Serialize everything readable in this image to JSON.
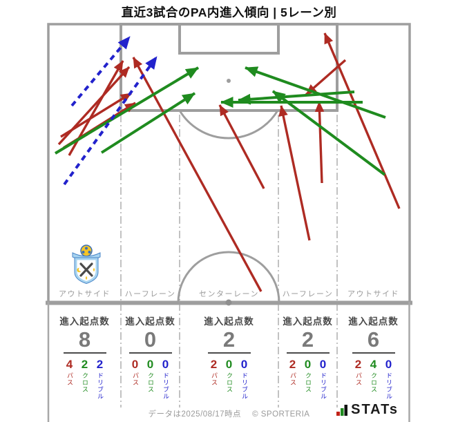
{
  "title": "直近3試合のPA内進入傾向 | 5レーン別",
  "colors": {
    "pass": "#AE2B23",
    "cross": "#1F8B1F",
    "dribble": "#2222CC",
    "pitch_line": "#9E9E9E",
    "divider": "#AEAEAE",
    "lane_label": "#9A9A9A",
    "metric_label": "#4A4A4A",
    "count": "#7A7A7A",
    "footer": "#9A9A9A"
  },
  "stats": {
    "metric_label": "進入起点数",
    "type_labels": {
      "pass": "パス",
      "cross": "クロス",
      "dribble": "ドリブル"
    },
    "lanes": [
      {
        "label": "アウトサイド",
        "entry_count": 8,
        "pass": 4,
        "cross": 2,
        "dribble": 2
      },
      {
        "label": "ハーフレーン",
        "entry_count": 0,
        "pass": 0,
        "cross": 0,
        "dribble": 0
      },
      {
        "label": "センターレーン",
        "entry_count": 2,
        "pass": 2,
        "cross": 0,
        "dribble": 0
      },
      {
        "label": "ハーフレーン",
        "entry_count": 2,
        "pass": 2,
        "cross": 0,
        "dribble": 0
      },
      {
        "label": "アウトサイド",
        "entry_count": 6,
        "pass": 2,
        "cross": 4,
        "dribble": 0
      }
    ]
  },
  "footer": {
    "date_note": "データは2025/08/17時点",
    "copyright": "© SPORTERIA",
    "brand": "STATs"
  },
  "chart_data": {
    "type": "table",
    "title": "直近3試合のPA内進入傾向 | 5レーン別",
    "categories": [
      "アウトサイド",
      "ハーフレーン",
      "センターレーン",
      "ハーフレーン",
      "アウトサイド"
    ],
    "series": [
      {
        "name": "進入起点数",
        "values": [
          8,
          0,
          2,
          2,
          6
        ]
      },
      {
        "name": "パス",
        "values": [
          4,
          0,
          2,
          2,
          2
        ]
      },
      {
        "name": "クロス",
        "values": [
          2,
          0,
          0,
          0,
          4
        ]
      },
      {
        "name": "ドリブル",
        "values": [
          2,
          0,
          0,
          0,
          0
        ]
      }
    ],
    "arrows": [
      {
        "type": "pass",
        "from": [
          100,
          225
        ],
        "to": [
          178,
          88
        ]
      },
      {
        "type": "pass",
        "from": [
          85,
          209
        ],
        "to": [
          187,
          97
        ]
      },
      {
        "type": "pass",
        "from": [
          88,
          198
        ],
        "to": [
          190,
          135
        ]
      },
      {
        "type": "pass",
        "from": [
          92,
          214
        ],
        "to": [
          196,
          149
        ]
      },
      {
        "type": "pass",
        "from": [
          378,
          422
        ],
        "to": [
          193,
          83
        ]
      },
      {
        "type": "pass",
        "from": [
          382,
          273
        ],
        "to": [
          318,
          152
        ]
      },
      {
        "type": "pass",
        "from": [
          448,
          348
        ],
        "to": [
          407,
          153
        ]
      },
      {
        "type": "pass",
        "from": [
          466,
          265
        ],
        "to": [
          462,
          147
        ]
      },
      {
        "type": "pass",
        "from": [
          578,
          302
        ],
        "to": [
          470,
          48
        ]
      },
      {
        "type": "pass",
        "from": [
          500,
          87
        ],
        "to": [
          443,
          137
        ]
      },
      {
        "type": "cross",
        "from": [
          80,
          222
        ],
        "to": [
          287,
          98
        ]
      },
      {
        "type": "cross",
        "from": [
          147,
          221
        ],
        "to": [
          282,
          135
        ]
      },
      {
        "type": "cross",
        "from": [
          513,
          133
        ],
        "to": [
          345,
          145
        ]
      },
      {
        "type": "cross",
        "from": [
          525,
          148
        ],
        "to": [
          320,
          148
        ]
      },
      {
        "type": "cross",
        "from": [
          558,
          170
        ],
        "to": [
          355,
          98
        ]
      },
      {
        "type": "cross",
        "from": [
          557,
          253
        ],
        "to": [
          395,
          132
        ]
      },
      {
        "type": "dribble",
        "from": [
          104,
          153
        ],
        "to": [
          188,
          53
        ]
      },
      {
        "type": "dribble",
        "from": [
          93,
          267
        ],
        "to": [
          227,
          82
        ]
      }
    ]
  }
}
